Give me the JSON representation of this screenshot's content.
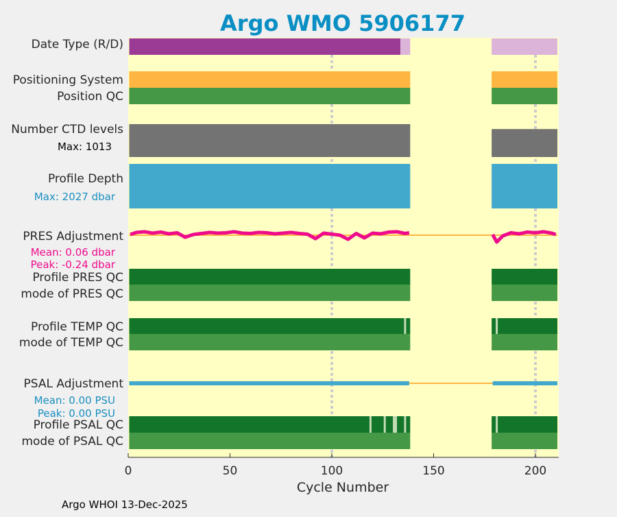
{
  "chart_data": {
    "type": "bar",
    "title": "Argo WMO 5906177",
    "xlabel": "Cycle Number",
    "xlim": [
      0,
      211
    ],
    "xticks": [
      0,
      50,
      100,
      150,
      200
    ],
    "grid_x": [
      100,
      200
    ],
    "footer": "Argo WHOI 13-Dec-2025",
    "colors": {
      "title": "#0a8fc4",
      "background": "#ffffc4",
      "grid": "#cccccc",
      "purple": "#9b3b96",
      "pink": "#dcb4da",
      "orange": "#ffb541",
      "green": "#459845",
      "darkgreen": "#13752a",
      "gray": "#737373",
      "blue": "#42a9cd",
      "magenta": "#ee0c8c",
      "flag": "#c4dcb4"
    },
    "rows": [
      {
        "label": "Date Type (R/D)",
        "band": "top",
        "segments": [
          {
            "from": 0.5,
            "to": 133.7,
            "color": "purple"
          },
          {
            "from": 133.7,
            "to": 138.5,
            "color": "pink"
          },
          {
            "from": 178.5,
            "to": 210.8,
            "color": "pink"
          }
        ]
      },
      {
        "label": "Positioning System",
        "band": "pos",
        "segments": [
          {
            "from": 0.5,
            "to": 138.5,
            "color": "orange"
          },
          {
            "from": 178.5,
            "to": 210.8,
            "color": "orange"
          }
        ]
      },
      {
        "label": "Position QC",
        "band": "posqc",
        "segments": [
          {
            "from": 0.5,
            "to": 138.5,
            "color": "green"
          },
          {
            "from": 178.5,
            "to": 210.8,
            "color": "green"
          }
        ]
      },
      {
        "label": "Number CTD levels",
        "sublabel": "Max: 1013",
        "band": "ctd",
        "segments": [
          {
            "from": 0.5,
            "to": 138.5,
            "color": "gray"
          },
          {
            "from": 178.5,
            "to": 210.8,
            "color": "gray",
            "level": 0.85
          }
        ]
      },
      {
        "label": "Profile Depth",
        "sublabel": "Max: 2027 dbar",
        "band": "depth",
        "segments": [
          {
            "from": 0.5,
            "to": 138.5,
            "color": "blue"
          },
          {
            "from": 178.5,
            "to": 210.8,
            "color": "blue"
          }
        ]
      },
      {
        "label": "Profile PRES QC",
        "band": "presqc",
        "segments": [
          {
            "from": 0.5,
            "to": 138.5,
            "color": "darkgreen"
          },
          {
            "from": 178.5,
            "to": 210.8,
            "color": "darkgreen"
          }
        ]
      },
      {
        "label": "mode of PRES QC",
        "band": "presmode",
        "segments": [
          {
            "from": 0.5,
            "to": 138.5,
            "color": "green"
          },
          {
            "from": 178.5,
            "to": 210.8,
            "color": "green"
          }
        ]
      },
      {
        "label": "Profile TEMP QC",
        "band": "tempqc",
        "segments": [
          {
            "from": 0.5,
            "to": 138.5,
            "color": "darkgreen"
          },
          {
            "from": 178.5,
            "to": 210.8,
            "color": "darkgreen"
          }
        ],
        "flags": [
          136,
          181
        ]
      },
      {
        "label": "mode of TEMP QC",
        "band": "tempmode",
        "segments": [
          {
            "from": 0.5,
            "to": 138.5,
            "color": "green"
          },
          {
            "from": 178.5,
            "to": 210.8,
            "color": "green"
          }
        ]
      },
      {
        "label": "Profile PSAL QC",
        "band": "psalqc",
        "segments": [
          {
            "from": 0.5,
            "to": 138.5,
            "color": "darkgreen"
          },
          {
            "from": 178.5,
            "to": 210.8,
            "color": "darkgreen"
          }
        ],
        "flags": [
          119,
          126,
          130.5,
          131.5,
          136,
          181
        ]
      },
      {
        "label": "mode of PSAL QC",
        "band": "psalmode",
        "segments": [
          {
            "from": 0.5,
            "to": 138.5,
            "color": "green"
          },
          {
            "from": 178.5,
            "to": 210.8,
            "color": "green"
          }
        ]
      }
    ],
    "pres_adjustment": {
      "label": "PRES Adjustment",
      "mean_text": "Mean: 0.06 dbar",
      "peak_text": "Peak: -0.24 dbar",
      "unit": "dbar",
      "cycles": [
        1,
        4,
        8,
        12,
        16,
        20,
        24,
        28,
        32,
        36,
        40,
        44,
        48,
        52,
        56,
        60,
        64,
        68,
        72,
        76,
        80,
        84,
        88,
        92,
        96,
        100,
        104,
        108,
        112,
        116,
        120,
        124,
        128,
        132,
        136,
        138,
        179,
        181,
        184,
        188,
        192,
        196,
        200,
        204,
        208,
        210
      ],
      "values": [
        0.02,
        0.08,
        0.1,
        0.06,
        0.09,
        0.04,
        0.07,
        -0.06,
        0.02,
        0.05,
        0.08,
        0.06,
        0.07,
        0.1,
        0.06,
        0.05,
        0.08,
        0.07,
        0.04,
        0.06,
        0.08,
        0.05,
        0.03,
        -0.1,
        0.06,
        0.03,
        0.0,
        -0.12,
        0.05,
        -0.08,
        0.06,
        0.04,
        0.09,
        0.1,
        0.05,
        0.07,
        0.02,
        -0.2,
        -0.02,
        0.07,
        0.04,
        0.09,
        0.07,
        0.1,
        0.06,
        0.02
      ]
    },
    "psal_adjustment": {
      "label": "PSAL Adjustment",
      "mean_text": "Mean: 0.00 PSU",
      "peak_text": "Peak: 0.00 PSU",
      "unit": "PSU",
      "segments": [
        {
          "from": 0.5,
          "to": 138,
          "value": 0.0
        },
        {
          "from": 179,
          "to": 210.8,
          "value": 0.0
        }
      ]
    }
  }
}
